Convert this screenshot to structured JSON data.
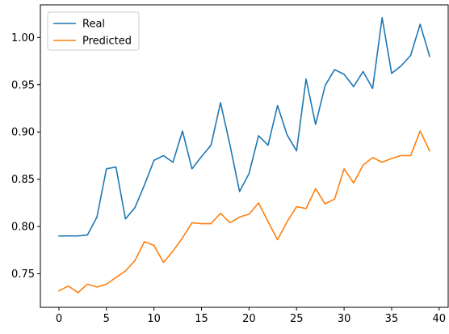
{
  "chart_data": {
    "type": "line",
    "title": "",
    "xlabel": "",
    "ylabel": "",
    "xlim": [
      -1.95,
      40.95
    ],
    "ylim": [
      0.7145,
      1.0345
    ],
    "grid": false,
    "legend_position": "top-left",
    "x_ticks": [
      0,
      5,
      10,
      15,
      20,
      25,
      30,
      35,
      40
    ],
    "y_ticks": [
      0.75,
      0.8,
      0.85,
      0.9,
      0.95,
      1.0
    ],
    "x": [
      0,
      1,
      2,
      3,
      4,
      5,
      6,
      7,
      8,
      9,
      10,
      11,
      12,
      13,
      14,
      15,
      16,
      17,
      18,
      19,
      20,
      21,
      22,
      23,
      24,
      25,
      26,
      27,
      28,
      29,
      30,
      31,
      32,
      33,
      34,
      35,
      36,
      37,
      38,
      39
    ],
    "series": [
      {
        "name": "Real",
        "color": "#1f77b4",
        "values": [
          0.79,
          0.79,
          0.79,
          0.791,
          0.81,
          0.861,
          0.863,
          0.808,
          0.82,
          0.844,
          0.87,
          0.875,
          0.868,
          0.901,
          0.861,
          0.874,
          0.886,
          0.931,
          0.886,
          0.837,
          0.856,
          0.896,
          0.886,
          0.928,
          0.897,
          0.88,
          0.956,
          0.908,
          0.949,
          0.966,
          0.961,
          0.948,
          0.964,
          0.946,
          1.021,
          0.962,
          0.97,
          0.981,
          1.014,
          0.98
        ]
      },
      {
        "name": "Predicted",
        "color": "#ff7f0e",
        "values": [
          0.732,
          0.737,
          0.73,
          0.739,
          0.736,
          0.739,
          0.746,
          0.753,
          0.764,
          0.784,
          0.78,
          0.762,
          0.774,
          0.788,
          0.804,
          0.803,
          0.803,
          0.814,
          0.804,
          0.81,
          0.813,
          0.825,
          0.805,
          0.786,
          0.805,
          0.821,
          0.819,
          0.84,
          0.824,
          0.829,
          0.861,
          0.846,
          0.865,
          0.873,
          0.868,
          0.872,
          0.875,
          0.875,
          0.901,
          0.88
        ]
      }
    ]
  }
}
